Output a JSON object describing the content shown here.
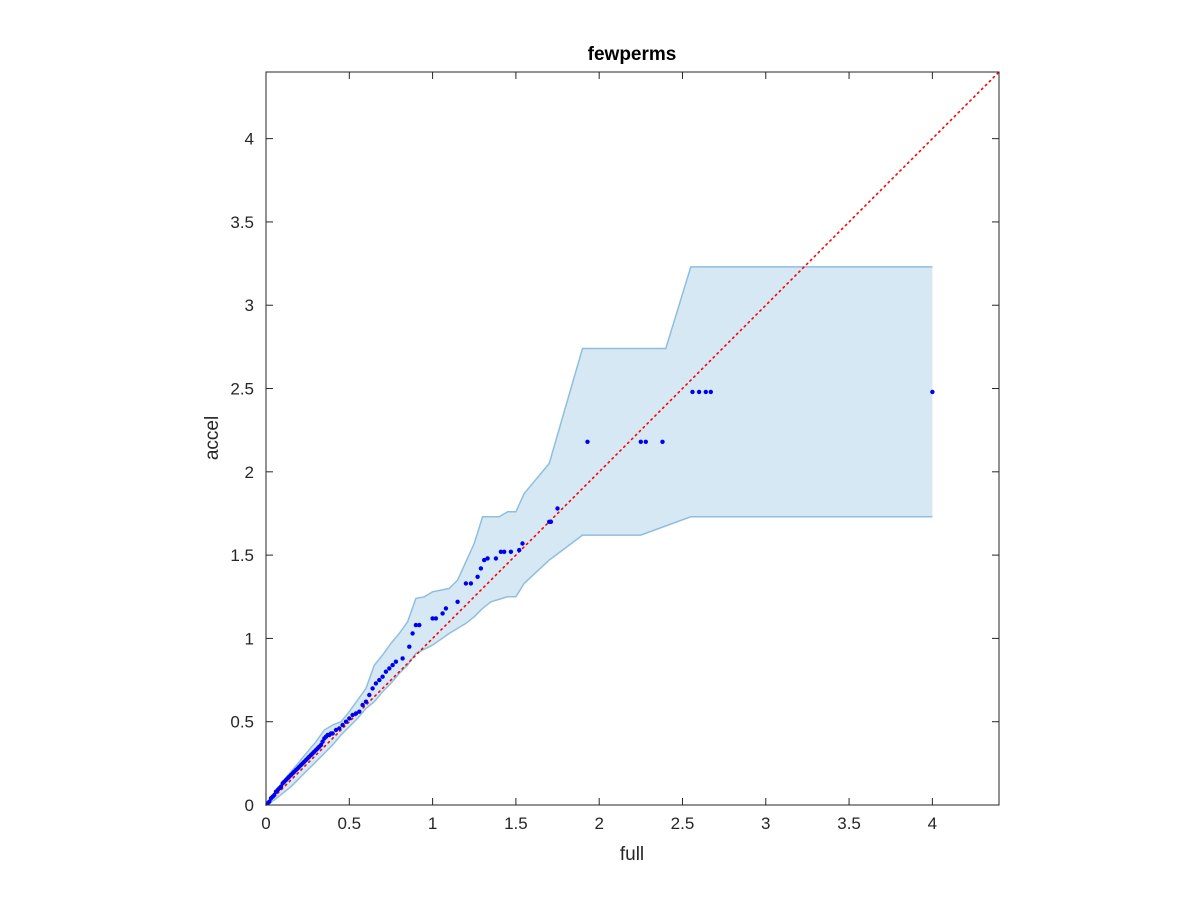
{
  "chart_data": {
    "type": "scatter",
    "title": "fewperms",
    "xlabel": "full",
    "ylabel": "accel",
    "xlim": [
      0,
      4.4
    ],
    "ylim": [
      0,
      4.4
    ],
    "xticks": [
      0,
      0.5,
      1,
      1.5,
      2,
      2.5,
      3,
      3.5,
      4
    ],
    "xtick_labels": [
      "0",
      "0.5",
      "1",
      "1.5",
      "2",
      "2.5",
      "3",
      "3.5",
      "4"
    ],
    "yticks": [
      0,
      0.5,
      1,
      1.5,
      2,
      2.5,
      3,
      3.5,
      4
    ],
    "ytick_labels": [
      "0",
      "0.5",
      "1",
      "1.5",
      "2",
      "2.5",
      "3",
      "3.5",
      "4"
    ],
    "grid": false,
    "colors": {
      "points": "#0000ee",
      "reference_line": "#ff0000",
      "band_fill": "#d6e8f4",
      "band_edge": "#8fbfdc",
      "axes": "#262626"
    },
    "reference_line": {
      "style": "dotted",
      "from": [
        0,
        0
      ],
      "to": [
        4.4,
        4.4
      ]
    },
    "band": {
      "upper": [
        [
          0,
          0
        ],
        [
          0.05,
          0.07
        ],
        [
          0.1,
          0.14
        ],
        [
          0.15,
          0.2
        ],
        [
          0.2,
          0.26
        ],
        [
          0.25,
          0.32
        ],
        [
          0.3,
          0.38
        ],
        [
          0.35,
          0.45
        ],
        [
          0.4,
          0.48
        ],
        [
          0.45,
          0.5
        ],
        [
          0.5,
          0.56
        ],
        [
          0.55,
          0.63
        ],
        [
          0.6,
          0.7
        ],
        [
          0.65,
          0.84
        ],
        [
          0.7,
          0.9
        ],
        [
          0.75,
          0.97
        ],
        [
          0.8,
          1.03
        ],
        [
          0.85,
          1.1
        ],
        [
          0.9,
          1.24
        ],
        [
          0.95,
          1.25
        ],
        [
          1.0,
          1.28
        ],
        [
          1.1,
          1.3
        ],
        [
          1.15,
          1.35
        ],
        [
          1.2,
          1.46
        ],
        [
          1.25,
          1.57
        ],
        [
          1.3,
          1.73
        ],
        [
          1.4,
          1.73
        ],
        [
          1.45,
          1.76
        ],
        [
          1.5,
          1.76
        ],
        [
          1.55,
          1.87
        ],
        [
          1.65,
          1.99
        ],
        [
          1.7,
          2.05
        ],
        [
          1.9,
          2.74
        ],
        [
          2.4,
          2.74
        ],
        [
          2.55,
          3.23
        ],
        [
          4.0,
          3.23
        ]
      ],
      "lower": [
        [
          0,
          0
        ],
        [
          0.05,
          0.03
        ],
        [
          0.1,
          0.07
        ],
        [
          0.15,
          0.11
        ],
        [
          0.2,
          0.16
        ],
        [
          0.25,
          0.21
        ],
        [
          0.3,
          0.26
        ],
        [
          0.35,
          0.31
        ],
        [
          0.4,
          0.36
        ],
        [
          0.45,
          0.42
        ],
        [
          0.5,
          0.47
        ],
        [
          0.55,
          0.52
        ],
        [
          0.6,
          0.58
        ],
        [
          0.65,
          0.62
        ],
        [
          0.7,
          0.68
        ],
        [
          0.75,
          0.73
        ],
        [
          0.8,
          0.79
        ],
        [
          0.85,
          0.84
        ],
        [
          0.9,
          0.91
        ],
        [
          1.0,
          0.96
        ],
        [
          1.1,
          1.03
        ],
        [
          1.2,
          1.09
        ],
        [
          1.25,
          1.13
        ],
        [
          1.3,
          1.18
        ],
        [
          1.35,
          1.22
        ],
        [
          1.45,
          1.25
        ],
        [
          1.5,
          1.25
        ],
        [
          1.55,
          1.33
        ],
        [
          1.7,
          1.47
        ],
        [
          1.9,
          1.62
        ],
        [
          2.25,
          1.62
        ],
        [
          2.55,
          1.73
        ],
        [
          4.0,
          1.73
        ]
      ]
    },
    "points": [
      [
        0.01,
        0.01
      ],
      [
        0.02,
        0.02
      ],
      [
        0.03,
        0.04
      ],
      [
        0.04,
        0.05
      ],
      [
        0.05,
        0.06
      ],
      [
        0.06,
        0.08
      ],
      [
        0.07,
        0.09
      ],
      [
        0.08,
        0.1
      ],
      [
        0.09,
        0.11
      ],
      [
        0.1,
        0.13
      ],
      [
        0.11,
        0.14
      ],
      [
        0.12,
        0.15
      ],
      [
        0.13,
        0.16
      ],
      [
        0.14,
        0.17
      ],
      [
        0.15,
        0.18
      ],
      [
        0.16,
        0.19
      ],
      [
        0.17,
        0.2
      ],
      [
        0.18,
        0.21
      ],
      [
        0.19,
        0.22
      ],
      [
        0.2,
        0.23
      ],
      [
        0.21,
        0.24
      ],
      [
        0.22,
        0.25
      ],
      [
        0.23,
        0.26
      ],
      [
        0.24,
        0.27
      ],
      [
        0.25,
        0.28
      ],
      [
        0.26,
        0.29
      ],
      [
        0.27,
        0.3
      ],
      [
        0.28,
        0.31
      ],
      [
        0.29,
        0.32
      ],
      [
        0.3,
        0.33
      ],
      [
        0.31,
        0.34
      ],
      [
        0.32,
        0.35
      ],
      [
        0.33,
        0.36
      ],
      [
        0.34,
        0.38
      ],
      [
        0.35,
        0.4
      ],
      [
        0.36,
        0.41
      ],
      [
        0.37,
        0.42
      ],
      [
        0.38,
        0.42
      ],
      [
        0.39,
        0.43
      ],
      [
        0.4,
        0.43
      ],
      [
        0.42,
        0.45
      ],
      [
        0.44,
        0.46
      ],
      [
        0.46,
        0.48
      ],
      [
        0.48,
        0.5
      ],
      [
        0.5,
        0.52
      ],
      [
        0.52,
        0.54
      ],
      [
        0.54,
        0.55
      ],
      [
        0.56,
        0.56
      ],
      [
        0.58,
        0.6
      ],
      [
        0.6,
        0.62
      ],
      [
        0.62,
        0.66
      ],
      [
        0.64,
        0.7
      ],
      [
        0.66,
        0.73
      ],
      [
        0.68,
        0.75
      ],
      [
        0.7,
        0.77
      ],
      [
        0.72,
        0.8
      ],
      [
        0.74,
        0.82
      ],
      [
        0.76,
        0.84
      ],
      [
        0.78,
        0.86
      ],
      [
        0.82,
        0.88
      ],
      [
        0.86,
        0.95
      ],
      [
        0.88,
        1.03
      ],
      [
        0.9,
        1.08
      ],
      [
        0.92,
        1.08
      ],
      [
        1.0,
        1.12
      ],
      [
        1.02,
        1.12
      ],
      [
        1.06,
        1.15
      ],
      [
        1.08,
        1.18
      ],
      [
        1.15,
        1.22
      ],
      [
        1.2,
        1.33
      ],
      [
        1.23,
        1.33
      ],
      [
        1.27,
        1.37
      ],
      [
        1.29,
        1.42
      ],
      [
        1.31,
        1.47
      ],
      [
        1.33,
        1.48
      ],
      [
        1.38,
        1.48
      ],
      [
        1.41,
        1.52
      ],
      [
        1.43,
        1.52
      ],
      [
        1.47,
        1.52
      ],
      [
        1.52,
        1.53
      ],
      [
        1.54,
        1.57
      ],
      [
        1.7,
        1.7
      ],
      [
        1.71,
        1.7
      ],
      [
        1.75,
        1.78
      ],
      [
        1.93,
        2.18
      ],
      [
        2.25,
        2.18
      ],
      [
        2.28,
        2.18
      ],
      [
        2.38,
        2.18
      ],
      [
        2.56,
        2.48
      ],
      [
        2.6,
        2.48
      ],
      [
        2.64,
        2.48
      ],
      [
        2.67,
        2.48
      ],
      [
        4.0,
        2.48
      ]
    ]
  }
}
